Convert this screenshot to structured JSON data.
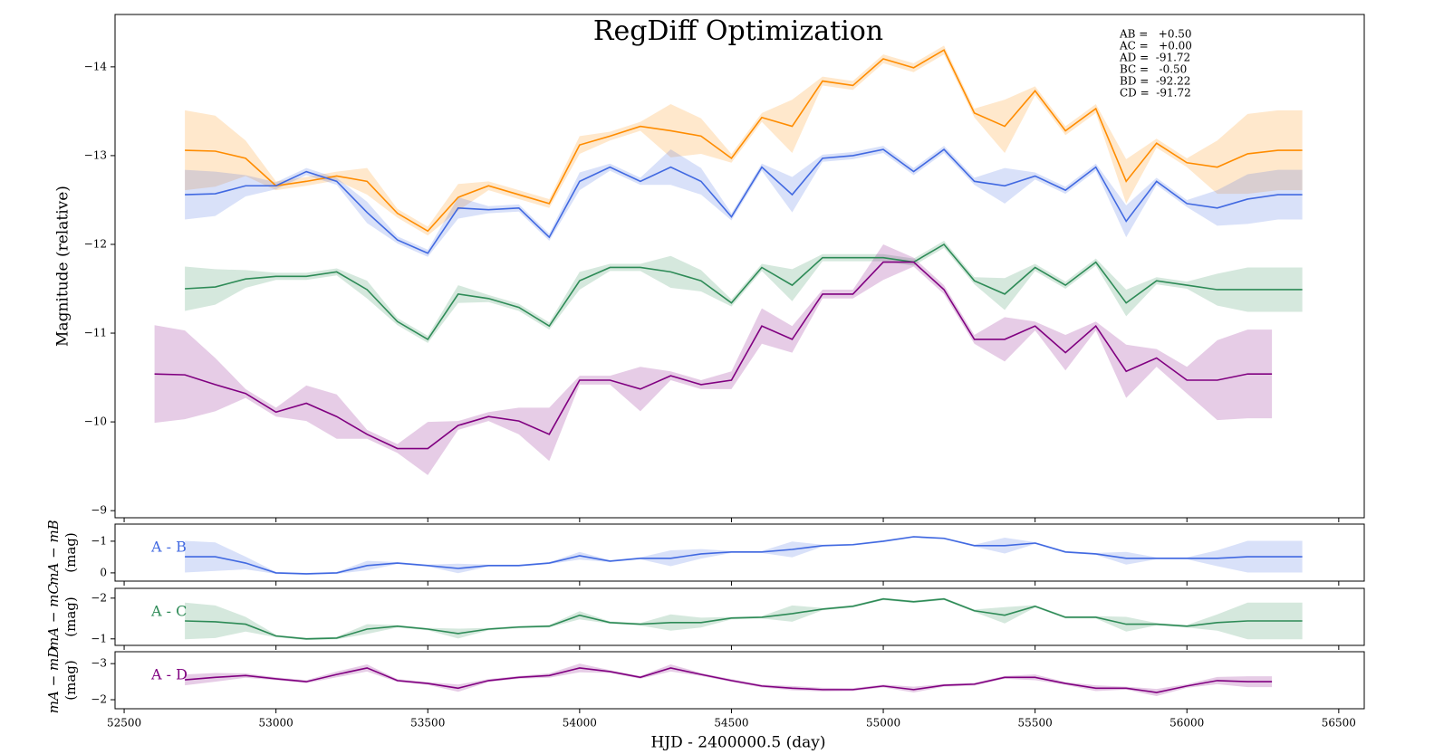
{
  "chart_data": [
    {
      "type": "line",
      "title": "RegDiff Optimization",
      "ylabel": "Magnitude (relative)",
      "xlim": [
        52470,
        56584
      ],
      "ylim": [
        -14.59,
        -8.92
      ],
      "y_inverted": true,
      "yticks": [
        {
          "value": -14,
          "label": "−14"
        },
        {
          "value": -13,
          "label": "−13"
        },
        {
          "value": -12,
          "label": "−12"
        },
        {
          "value": -11,
          "label": "−11"
        },
        {
          "value": -10,
          "label": "−10"
        },
        {
          "value": -9,
          "label": "−9"
        }
      ],
      "annotations": [
        "AB =   +0.50",
        "AC =   +0.00",
        "AD =  -91.72",
        "BC =   -0.50",
        "BD =  -92.22",
        "CD =  -91.72"
      ],
      "series": [
        {
          "color": "#ff8c00",
          "x": [
            52700,
            52800,
            52900,
            53000,
            53100,
            53200,
            53300,
            53400,
            53500,
            53600,
            53700,
            53800,
            53900,
            54000,
            54100,
            54200,
            54300,
            54400,
            54500,
            54600,
            54700,
            54800,
            54900,
            55000,
            55100,
            55200,
            55300,
            55400,
            55500,
            55600,
            55700,
            55800,
            55900,
            56000,
            56100,
            56200,
            56300,
            56380
          ],
          "values": [
            -13.06,
            -13.05,
            -12.97,
            -12.66,
            -12.71,
            -12.77,
            -12.71,
            -12.35,
            -12.15,
            -12.53,
            -12.66,
            -12.56,
            -12.46,
            -13.12,
            -13.22,
            -13.33,
            -13.28,
            -13.22,
            -12.97,
            -13.43,
            -13.33,
            -13.84,
            -13.79,
            -14.09,
            -13.99,
            -14.19,
            -13.48,
            -13.33,
            -13.73,
            -13.28,
            -13.53,
            -12.71,
            -13.14,
            -12.92,
            -12.87,
            -13.02,
            -13.06,
            -13.06
          ],
          "errors": [
            0.45,
            0.4,
            0.2,
            0.05,
            0.05,
            0.05,
            0.15,
            0.05,
            0.05,
            0.15,
            0.05,
            0.05,
            0.05,
            0.1,
            0.05,
            0.05,
            0.3,
            0.2,
            0.05,
            0.05,
            0.3,
            0.05,
            0.05,
            0.05,
            0.05,
            0.05,
            0.05,
            0.3,
            0.05,
            0.05,
            0.05,
            0.25,
            0.05,
            0.05,
            0.3,
            0.45,
            0.45,
            0.45
          ]
        },
        {
          "color": "#4169e1",
          "x": [
            52700,
            52800,
            52900,
            53000,
            53100,
            53200,
            53300,
            53400,
            53500,
            53600,
            53700,
            53800,
            53900,
            54000,
            54100,
            54200,
            54300,
            54400,
            54500,
            54600,
            54700,
            54800,
            54900,
            55000,
            55100,
            55200,
            55300,
            55400,
            55500,
            55600,
            55700,
            55800,
            55900,
            56000,
            56100,
            56200,
            56300,
            56380
          ],
          "values": [
            -12.56,
            -12.57,
            -12.66,
            -12.66,
            -12.82,
            -12.71,
            -12.36,
            -12.05,
            -11.9,
            -12.41,
            -12.39,
            -12.41,
            -12.08,
            -12.71,
            -12.87,
            -12.71,
            -12.87,
            -12.71,
            -12.31,
            -12.87,
            -12.56,
            -12.97,
            -13.0,
            -13.07,
            -12.82,
            -13.07,
            -12.71,
            -12.66,
            -12.77,
            -12.61,
            -12.87,
            -12.26,
            -12.71,
            -12.46,
            -12.41,
            -12.51,
            -12.56,
            -12.56
          ],
          "errors": [
            0.28,
            0.25,
            0.12,
            0.04,
            0.04,
            0.04,
            0.12,
            0.04,
            0.04,
            0.12,
            0.04,
            0.04,
            0.04,
            0.1,
            0.04,
            0.04,
            0.2,
            0.15,
            0.04,
            0.04,
            0.2,
            0.04,
            0.04,
            0.04,
            0.04,
            0.04,
            0.04,
            0.2,
            0.04,
            0.04,
            0.04,
            0.18,
            0.04,
            0.04,
            0.2,
            0.28,
            0.28,
            0.28
          ]
        },
        {
          "color": "#2e8b57",
          "x": [
            52700,
            52800,
            52900,
            53000,
            53100,
            53200,
            53300,
            53400,
            53500,
            53600,
            53700,
            53800,
            53900,
            54000,
            54100,
            54200,
            54300,
            54400,
            54500,
            54600,
            54700,
            54800,
            54900,
            55000,
            55100,
            55200,
            55300,
            55400,
            55500,
            55600,
            55700,
            55800,
            55900,
            56000,
            56100,
            56200,
            56300,
            56380
          ],
          "values": [
            -11.5,
            -11.52,
            -11.61,
            -11.64,
            -11.64,
            -11.69,
            -11.49,
            -11.13,
            -10.93,
            -11.44,
            -11.39,
            -11.29,
            -11.08,
            -11.59,
            -11.74,
            -11.74,
            -11.69,
            -11.59,
            -11.34,
            -11.74,
            -11.54,
            -11.85,
            -11.85,
            -11.85,
            -11.8,
            -12.0,
            -11.59,
            -11.44,
            -11.74,
            -11.54,
            -11.8,
            -11.34,
            -11.59,
            -11.54,
            -11.49,
            -11.49,
            -11.49,
            -11.49
          ],
          "errors": [
            0.25,
            0.2,
            0.1,
            0.04,
            0.04,
            0.04,
            0.1,
            0.04,
            0.04,
            0.1,
            0.04,
            0.04,
            0.04,
            0.1,
            0.04,
            0.04,
            0.18,
            0.12,
            0.04,
            0.04,
            0.18,
            0.04,
            0.04,
            0.04,
            0.04,
            0.04,
            0.04,
            0.18,
            0.04,
            0.04,
            0.04,
            0.15,
            0.04,
            0.04,
            0.18,
            0.25,
            0.25,
            0.25
          ]
        },
        {
          "color": "#800080",
          "x": [
            52600,
            52700,
            52800,
            52900,
            53000,
            53100,
            53200,
            53300,
            53400,
            53500,
            53600,
            53700,
            53800,
            53900,
            54000,
            54100,
            54200,
            54300,
            54400,
            54500,
            54600,
            54700,
            54800,
            54900,
            55000,
            55100,
            55200,
            55300,
            55400,
            55500,
            55600,
            55700,
            55800,
            55900,
            56000,
            56100,
            56200,
            56280
          ],
          "values": [
            -10.54,
            -10.53,
            -10.42,
            -10.32,
            -10.11,
            -10.21,
            -10.06,
            -9.86,
            -9.7,
            -9.7,
            -9.96,
            -10.06,
            -10.01,
            -9.86,
            -10.47,
            -10.47,
            -10.37,
            -10.52,
            -10.42,
            -10.47,
            -11.08,
            -10.93,
            -11.44,
            -11.44,
            -11.8,
            -11.8,
            -11.49,
            -10.93,
            -10.93,
            -11.08,
            -10.78,
            -11.08,
            -10.57,
            -10.72,
            -10.47,
            -10.47,
            -10.54,
            -10.54
          ],
          "errors": [
            0.55,
            0.5,
            0.3,
            0.05,
            0.05,
            0.2,
            0.25,
            0.05,
            0.05,
            0.3,
            0.05,
            0.05,
            0.15,
            0.3,
            0.05,
            0.05,
            0.25,
            0.05,
            0.05,
            0.1,
            0.2,
            0.15,
            0.05,
            0.05,
            0.2,
            0.05,
            0.05,
            0.05,
            0.25,
            0.05,
            0.2,
            0.05,
            0.3,
            0.1,
            0.15,
            0.45,
            0.5,
            0.5
          ]
        }
      ]
    },
    {
      "type": "line",
      "ylabel": "mA − mB",
      "ylabel_unit": "(mag)",
      "xlim": [
        52470,
        56584
      ],
      "ylim": [
        -1.54,
        0.26
      ],
      "y_inverted": true,
      "yticks": [
        {
          "value": -1,
          "label": "−1"
        },
        0
      ],
      "series": [
        {
          "name": "A - B",
          "color": "#4169e1",
          "x": [
            52700,
            52800,
            52900,
            53000,
            53100,
            53200,
            53300,
            53400,
            53500,
            53600,
            53700,
            53800,
            53900,
            54000,
            54100,
            54200,
            54300,
            54400,
            54500,
            54600,
            54700,
            54800,
            54900,
            55000,
            55100,
            55200,
            55300,
            55400,
            55500,
            55600,
            55700,
            55800,
            55900,
            56000,
            56100,
            56200,
            56300,
            56380
          ],
          "values": [
            -0.51,
            -0.51,
            -0.31,
            0,
            0.03,
            0,
            -0.23,
            -0.31,
            -0.23,
            -0.14,
            -0.23,
            -0.23,
            -0.31,
            -0.54,
            -0.37,
            -0.46,
            -0.46,
            -0.6,
            -0.66,
            -0.66,
            -0.74,
            -0.86,
            -0.89,
            -1.0,
            -1.14,
            -1.09,
            -0.86,
            -0.86,
            -0.94,
            -0.66,
            -0.6,
            -0.46,
            -0.46,
            -0.46,
            -0.46,
            -0.51,
            -0.51,
            -0.51
          ],
          "errors": [
            0.5,
            0.45,
            0.2,
            0.03,
            0.03,
            0.03,
            0.15,
            0.03,
            0.03,
            0.15,
            0.03,
            0.03,
            0.03,
            0.12,
            0.03,
            0.03,
            0.25,
            0.15,
            0.03,
            0.03,
            0.25,
            0.03,
            0.03,
            0.03,
            0.03,
            0.03,
            0.03,
            0.25,
            0.03,
            0.03,
            0.03,
            0.2,
            0.03,
            0.03,
            0.25,
            0.5,
            0.5,
            0.5
          ]
        }
      ]
    },
    {
      "type": "line",
      "ylabel": "mA − mC",
      "ylabel_unit": "(mag)",
      "xlim": [
        52470,
        56584
      ],
      "ylim": [
        -2.24,
        -0.84
      ],
      "y_inverted": true,
      "yticks": [
        {
          "value": -2,
          "label": "−2"
        },
        {
          "value": -1,
          "label": "−1"
        }
      ],
      "series": [
        {
          "name": "A - C",
          "color": "#2e8b57",
          "x": [
            52700,
            52800,
            52900,
            53000,
            53100,
            53200,
            53300,
            53400,
            53500,
            53600,
            53700,
            53800,
            53900,
            54000,
            54100,
            54200,
            54300,
            54400,
            54500,
            54600,
            54700,
            54800,
            54900,
            55000,
            55100,
            55200,
            55300,
            55400,
            55500,
            55600,
            55700,
            55800,
            55900,
            56000,
            56100,
            56200,
            56300,
            56380
          ],
          "values": [
            -1.44,
            -1.42,
            -1.36,
            -1.07,
            -1.0,
            -1.02,
            -1.24,
            -1.31,
            -1.24,
            -1.13,
            -1.24,
            -1.29,
            -1.31,
            -1.58,
            -1.4,
            -1.36,
            -1.4,
            -1.4,
            -1.51,
            -1.53,
            -1.62,
            -1.73,
            -1.8,
            -1.98,
            -1.91,
            -1.98,
            -1.69,
            -1.58,
            -1.8,
            -1.53,
            -1.53,
            -1.36,
            -1.36,
            -1.31,
            -1.4,
            -1.44,
            -1.44,
            -1.44
          ],
          "errors": [
            0.45,
            0.4,
            0.18,
            0.03,
            0.03,
            0.03,
            0.12,
            0.03,
            0.03,
            0.12,
            0.03,
            0.03,
            0.03,
            0.1,
            0.03,
            0.03,
            0.2,
            0.12,
            0.03,
            0.03,
            0.2,
            0.03,
            0.03,
            0.03,
            0.03,
            0.03,
            0.03,
            0.2,
            0.03,
            0.03,
            0.03,
            0.18,
            0.03,
            0.03,
            0.2,
            0.45,
            0.45,
            0.45
          ]
        }
      ]
    },
    {
      "type": "line",
      "ylabel": "mA − mD",
      "ylabel_unit": "(mag)",
      "xlabel": "HJD - 2400000.5 (day)",
      "xlim": [
        52470,
        56584
      ],
      "ylim": [
        -3.33,
        -1.75
      ],
      "y_inverted": true,
      "xticks": [
        52500,
        53000,
        53500,
        54000,
        54500,
        55000,
        55500,
        56000,
        56500
      ],
      "yticks": [
        {
          "value": -3,
          "label": "−3"
        },
        {
          "value": -2,
          "label": "−2"
        }
      ],
      "series": [
        {
          "name": "A - D",
          "color": "#800080",
          "x": [
            52700,
            52800,
            52900,
            53000,
            53100,
            53200,
            53300,
            53400,
            53500,
            53600,
            53700,
            53800,
            53900,
            54000,
            54100,
            54200,
            54300,
            54400,
            54500,
            54600,
            54700,
            54800,
            54900,
            55000,
            55100,
            55200,
            55300,
            55400,
            55500,
            55600,
            55700,
            55800,
            55900,
            56000,
            56100,
            56200,
            56280
          ],
          "values": [
            -2.55,
            -2.62,
            -2.67,
            -2.58,
            -2.5,
            -2.7,
            -2.88,
            -2.53,
            -2.45,
            -2.32,
            -2.53,
            -2.62,
            -2.67,
            -2.88,
            -2.78,
            -2.62,
            -2.88,
            -2.7,
            -2.53,
            -2.38,
            -2.32,
            -2.28,
            -2.28,
            -2.38,
            -2.28,
            -2.4,
            -2.43,
            -2.62,
            -2.62,
            -2.45,
            -2.32,
            -2.32,
            -2.2,
            -2.38,
            -2.53,
            -2.5,
            -2.5
          ],
          "errors": [
            0.15,
            0.12,
            0.06,
            0.04,
            0.04,
            0.08,
            0.1,
            0.04,
            0.04,
            0.1,
            0.04,
            0.04,
            0.06,
            0.12,
            0.04,
            0.04,
            0.1,
            0.04,
            0.04,
            0.04,
            0.06,
            0.05,
            0.04,
            0.04,
            0.08,
            0.04,
            0.04,
            0.04,
            0.08,
            0.04,
            0.08,
            0.04,
            0.1,
            0.05,
            0.1,
            0.15,
            0.15
          ]
        }
      ]
    }
  ]
}
